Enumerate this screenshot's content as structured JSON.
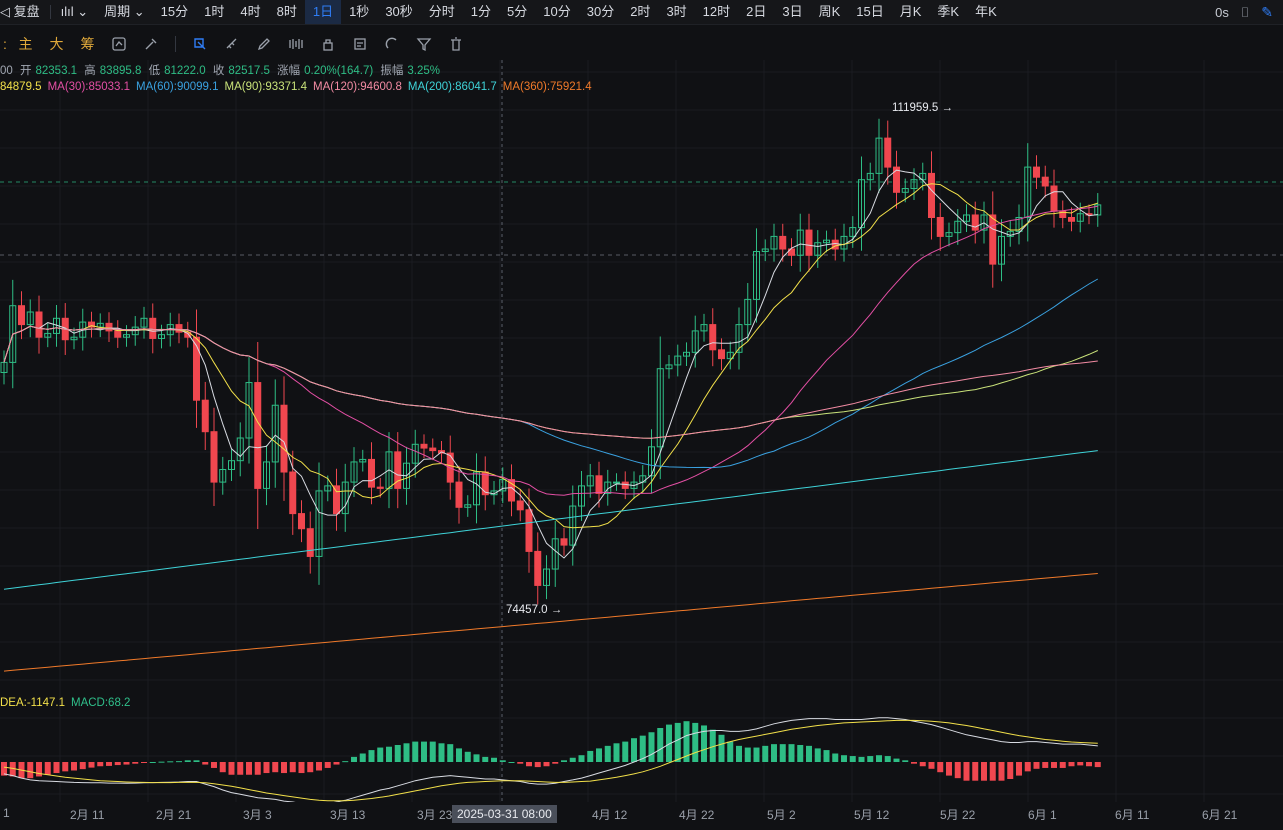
{
  "toolbar": {
    "left_label": "复盘",
    "period_label": "周期",
    "intervals": [
      "15分",
      "1时",
      "4时",
      "8时",
      "1日",
      "1秒",
      "30秒",
      "分时",
      "1分",
      "5分",
      "10分",
      "30分",
      "2时",
      "3时",
      "12时",
      "2日",
      "3日",
      "周K",
      "15日",
      "月K",
      "季K",
      "年K"
    ],
    "active_interval": "1日",
    "right_label": "0s"
  },
  "toolbar2": {
    "labels": [
      "主",
      "大",
      "筹"
    ]
  },
  "info": {
    "prefix": "00",
    "open_label": "开",
    "open": "82353.1",
    "high_label": "高",
    "high": "83895.8",
    "low_label": "低",
    "low": "81222.0",
    "close_label": "收",
    "close": "82517.5",
    "change_label": "涨幅",
    "change": "0.20%(164.7)",
    "amp_label": "振幅",
    "amp": "3.25%"
  },
  "ma_legend": [
    {
      "text": "84879.5",
      "color": "#f2e04a"
    },
    {
      "text": "MA(30):85033.1",
      "color": "#e34fa4"
    },
    {
      "text": "MA(60):90099.1",
      "color": "#3aa1e0"
    },
    {
      "text": "MA(90):93371.4",
      "color": "#c9e27a"
    },
    {
      "text": "MA(120):94600.8",
      "color": "#f28ba3"
    },
    {
      "text": "MA(200):86041.7",
      "color": "#3fd3d8"
    },
    {
      "text": "MA(360):75921.4",
      "color": "#f07a2a"
    }
  ],
  "macd_legend": [
    {
      "text": "DEA:-1147.1",
      "color": "#f2e04a"
    },
    {
      "text": "MACD:68.2",
      "color": "#2fbf8a"
    }
  ],
  "annotations": {
    "high": "111959.5",
    "low": "74457.0"
  },
  "crosshair_date": "2025-03-31 08:00",
  "colors": {
    "up": "#2ebd85",
    "down": "#f0474f",
    "bg": "#101114",
    "accent": "#2f7df6"
  },
  "chart_data": {
    "type": "candlestick",
    "ylim": [
      68000,
      118000
    ],
    "x_tick_labels": [
      "1",
      "2月 11",
      "2月 21",
      "3月 3",
      "3月 13",
      "3月 23",
      "4月 12",
      "4月 22",
      "5月 2",
      "5月 12",
      "5月 22",
      "6月 1",
      "6月 11",
      "6月 21"
    ],
    "closes": [
      94000,
      98500,
      97000,
      98000,
      96000,
      96300,
      97500,
      95800,
      96000,
      97200,
      96800,
      97100,
      96500,
      96000,
      96200,
      96800,
      97500,
      95900,
      96200,
      97000,
      96400,
      96000,
      91000,
      88500,
      84500,
      85500,
      86200,
      88000,
      92400,
      84000,
      86100,
      90600,
      85300,
      82000,
      80800,
      78600,
      83800,
      84200,
      82000,
      84500,
      86100,
      86300,
      84100,
      84000,
      86900,
      84000,
      86000,
      87500,
      87200,
      87000,
      86800,
      84500,
      82500,
      82700,
      85300,
      83500,
      83800,
      84700,
      83000,
      82300,
      79000,
      76300,
      77600,
      80000,
      79500,
      82600,
      84200,
      85000,
      83600,
      84500,
      84500,
      84000,
      84500,
      85000,
      87300,
      93500,
      93800,
      94500,
      94800,
      96500,
      97000,
      95000,
      94300,
      94800,
      97000,
      99000,
      102800,
      103000,
      104000,
      103000,
      102500,
      104500,
      102500,
      103500,
      103700,
      103000,
      104000,
      104700,
      108500,
      109000,
      111800,
      109500,
      107500,
      107800,
      108500,
      109000,
      105500,
      104000,
      104300,
      105200,
      105700,
      104500,
      105700,
      101800,
      104000,
      104400,
      105500,
      109500,
      108700,
      108000,
      106000,
      105500,
      105200,
      105800,
      105700,
      106500
    ],
    "macd_dif": [
      -1400,
      -1600,
      -1900,
      -2100,
      -2200,
      -2250,
      -2300,
      -2350,
      -2400,
      -2420,
      -2430,
      -2450,
      -2480,
      -2480,
      -2500,
      -2480,
      -2450,
      -2420,
      -2400,
      -2380,
      -2350,
      -2300,
      -2300,
      -2600,
      -2900,
      -3300,
      -3600,
      -3800,
      -4000,
      -4200,
      -4300,
      -4400,
      -4600,
      -4700,
      -4900,
      -5000,
      -5000,
      -4900,
      -4700,
      -4500,
      -4200,
      -3900,
      -3600,
      -3300,
      -3100,
      -2800,
      -2500,
      -2200,
      -2000,
      -1800,
      -1700,
      -1600,
      -1700,
      -1800,
      -1900,
      -2000,
      -2000,
      -2100,
      -2200,
      -2300,
      -2500,
      -2600,
      -2600,
      -2500,
      -2300,
      -2100,
      -1900,
      -1600,
      -1300,
      -1000,
      -700,
      -400,
      0,
      400,
      900,
      1500,
      2100,
      2600,
      3100,
      3400,
      3600,
      3700,
      3700,
      3600,
      3600,
      3700,
      3900,
      4200,
      4500,
      4700,
      4900,
      5000,
      5100,
      5100,
      5100,
      5000,
      5000,
      5000,
      5000,
      5100,
      5200,
      5200,
      5100,
      5000,
      4800,
      4600,
      4400,
      4100,
      3800,
      3500,
      3200,
      3000,
      2800,
      2600,
      2400,
      2300,
      2300,
      2400,
      2400,
      2300,
      2200,
      2100,
      2100,
      2100,
      2000,
      1900
    ],
    "macd_dea": [
      -600,
      -750,
      -950,
      -1150,
      -1350,
      -1500,
      -1650,
      -1800,
      -1900,
      -2000,
      -2100,
      -2200,
      -2250,
      -2300,
      -2350,
      -2380,
      -2400,
      -2420,
      -2420,
      -2420,
      -2400,
      -2400,
      -2400,
      -2450,
      -2550,
      -2700,
      -2850,
      -3050,
      -3250,
      -3450,
      -3650,
      -3800,
      -3950,
      -4100,
      -4250,
      -4400,
      -4500,
      -4550,
      -4550,
      -4550,
      -4500,
      -4400,
      -4300,
      -4150,
      -4000,
      -3800,
      -3600,
      -3400,
      -3200,
      -3000,
      -2800,
      -2650,
      -2500,
      -2400,
      -2350,
      -2300,
      -2250,
      -2200,
      -2200,
      -2200,
      -2250,
      -2300,
      -2350,
      -2400,
      -2400,
      -2350,
      -2300,
      -2250,
      -2100,
      -1950,
      -1800,
      -1600,
      -1400,
      -1150,
      -850,
      -500,
      -100,
      300,
      700,
      1100,
      1450,
      1800,
      2100,
      2400,
      2650,
      2850,
      3050,
      3250,
      3450,
      3650,
      3850,
      4000,
      4150,
      4300,
      4400,
      4500,
      4600,
      4650,
      4700,
      4750,
      4800,
      4850,
      4900,
      4900,
      4900,
      4850,
      4800,
      4700,
      4600,
      4450,
      4300,
      4100,
      3900,
      3700,
      3500,
      3300,
      3100,
      2950,
      2800,
      2650,
      2550,
      2450,
      2350,
      2300,
      2250,
      2200
    ]
  }
}
